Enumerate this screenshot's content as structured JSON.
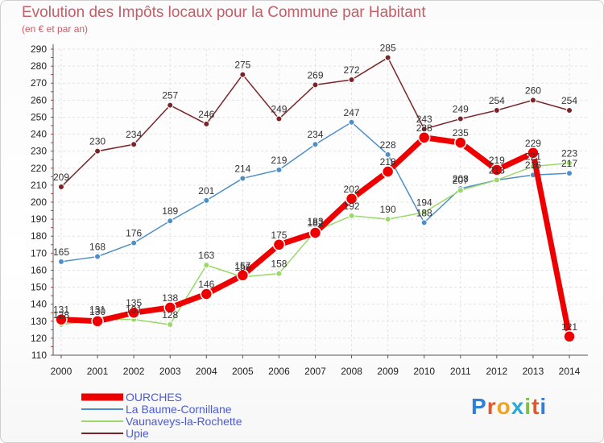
{
  "title": "Evolution des Impôts locaux pour la Commune par Habitant",
  "subtitle": "(en € et par an)",
  "brand": {
    "letters": [
      "P",
      "r",
      "o",
      "x",
      "i",
      "t",
      "i"
    ],
    "colors": [
      "#2f7fd9",
      "#e0592a",
      "#f2a318",
      "#2aa9d8",
      "#7cc242",
      "#e0592a",
      "#2f7fd9"
    ]
  },
  "chart_data": {
    "type": "line",
    "title": "Evolution des Impôts locaux pour la Commune par Habitant",
    "subtitle": "(en € et par an)",
    "xlabel": "",
    "ylabel": "",
    "x": [
      "2000",
      "2001",
      "2002",
      "2003",
      "2004",
      "2005",
      "2006",
      "2007",
      "2008",
      "2009",
      "2010",
      "2011",
      "2012",
      "2013",
      "2014"
    ],
    "ylim": [
      110,
      290
    ],
    "yticks": [
      "110",
      "120",
      "130",
      "140",
      "150",
      "160",
      "170",
      "180",
      "190",
      "200",
      "210",
      "220",
      "230",
      "240",
      "250",
      "260",
      "270",
      "280",
      "290"
    ],
    "grid": true,
    "legend_position": "bottom-left",
    "series": [
      {
        "name": "Upie",
        "color": "#7a2428",
        "values": [
          209,
          230,
          234,
          257,
          246,
          275,
          249,
          269,
          272,
          285,
          243,
          249,
          254,
          260,
          254
        ],
        "labels": [
          "209",
          "230",
          "234",
          "257",
          "246",
          "275",
          "249",
          "269",
          "272",
          "285",
          "243",
          "249",
          "254",
          "260",
          "254"
        ]
      },
      {
        "name": "La Baume-Cornillane",
        "color": "#4f8fc8",
        "values": [
          165,
          168,
          176,
          189,
          201,
          214,
          219,
          234,
          247,
          228,
          188,
          208,
          213,
          216,
          217
        ],
        "labels": [
          "165",
          "168",
          "176",
          "189",
          "201",
          "214",
          "219",
          "234",
          "247",
          "228",
          "188",
          "208",
          "213",
          "216",
          "217"
        ]
      },
      {
        "name": "Vaunaveys-la-Rochette",
        "color": "#9ad86a",
        "values": [
          128,
          131,
          131,
          128,
          163,
          156,
          158,
          183,
          192,
          190,
          194,
          207,
          213,
          221,
          223
        ],
        "labels": [
          "128",
          "131",
          "131",
          "128",
          "163",
          "156",
          "158",
          "183",
          "192",
          "190",
          "194",
          "207",
          "213",
          "221",
          "223"
        ]
      },
      {
        "name": "OURCHES",
        "color": "#ee0000",
        "values": [
          131,
          130,
          135,
          138,
          146,
          157,
          175,
          182,
          202,
          218,
          238,
          235,
          219,
          229,
          121
        ],
        "labels": [
          "131",
          "130",
          "135",
          "138",
          "146",
          "157",
          "175",
          "182",
          "202",
          "218",
          "238",
          "235",
          "219",
          "229",
          "121"
        ]
      }
    ],
    "legend": [
      "OURCHES",
      "La Baume-Cornillane",
      "Vaunaveys-la-Rochette",
      "Upie"
    ]
  }
}
